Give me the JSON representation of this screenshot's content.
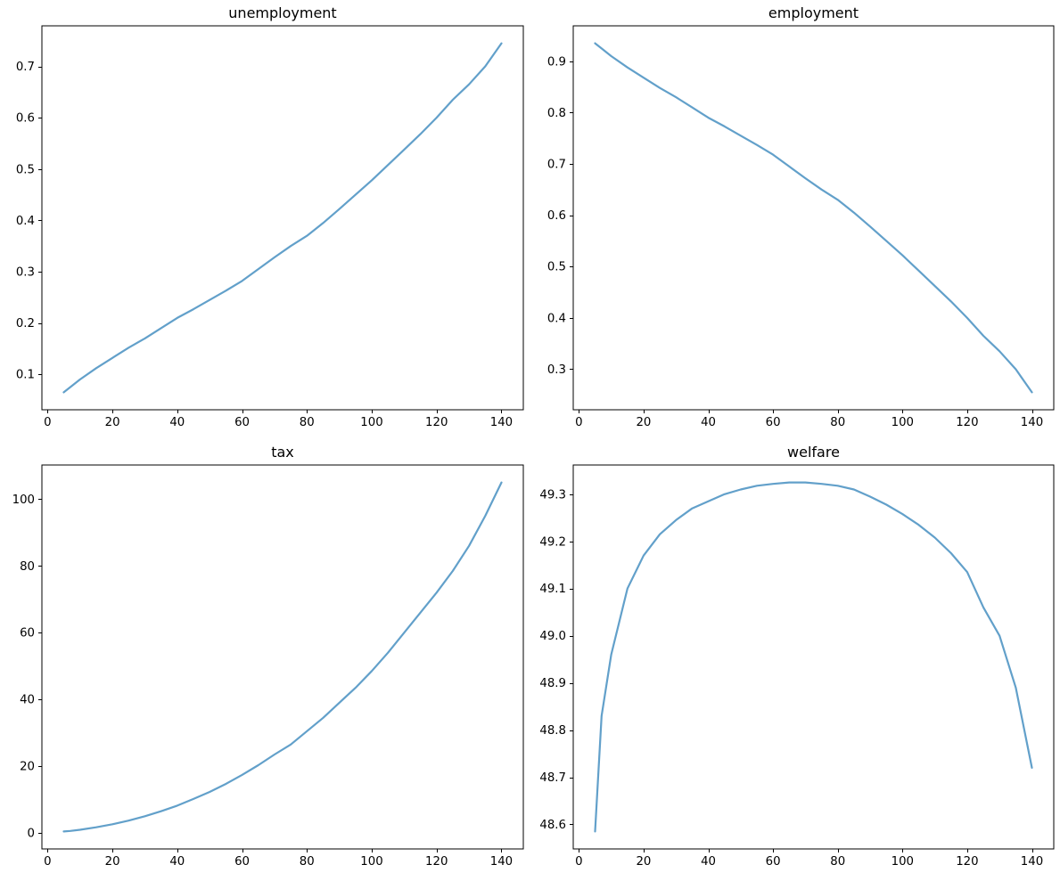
{
  "figure": {
    "background": "#ffffff",
    "line_color": "#62a0ca",
    "spine_color": "#000000",
    "text_color": "#000000",
    "line_width": 2.2
  },
  "chart_data": [
    {
      "type": "line",
      "title": "unemployment",
      "x": [
        5,
        7,
        10,
        15,
        20,
        25,
        30,
        35,
        40,
        45,
        50,
        55,
        60,
        65,
        70,
        75,
        80,
        85,
        90,
        95,
        100,
        105,
        110,
        115,
        120,
        125,
        130,
        135,
        140
      ],
      "values": [
        0.065,
        0.075,
        0.09,
        0.112,
        0.132,
        0.152,
        0.17,
        0.19,
        0.21,
        0.227,
        0.245,
        0.263,
        0.282,
        0.305,
        0.328,
        0.35,
        0.37,
        0.395,
        0.422,
        0.45,
        0.478,
        0.508,
        0.538,
        0.568,
        0.6,
        0.635,
        0.665,
        0.7,
        0.745
      ],
      "xlim": [
        -1.75,
        146.75
      ],
      "ylim": [
        0.031,
        0.779
      ],
      "xticks": [
        0,
        20,
        40,
        60,
        80,
        100,
        120,
        140
      ],
      "yticks": [
        0.1,
        0.2,
        0.3,
        0.4,
        0.5,
        0.6,
        0.7
      ],
      "xtick_decimals": 0,
      "ytick_decimals": 1,
      "grid": false,
      "legend": "none"
    },
    {
      "type": "line",
      "title": "employment",
      "x": [
        5,
        7,
        10,
        15,
        20,
        25,
        30,
        35,
        40,
        45,
        50,
        55,
        60,
        65,
        70,
        75,
        80,
        85,
        90,
        95,
        100,
        105,
        110,
        115,
        120,
        125,
        130,
        135,
        140
      ],
      "values": [
        0.935,
        0.925,
        0.91,
        0.888,
        0.868,
        0.848,
        0.83,
        0.81,
        0.79,
        0.773,
        0.755,
        0.737,
        0.718,
        0.695,
        0.672,
        0.65,
        0.63,
        0.605,
        0.578,
        0.55,
        0.522,
        0.492,
        0.462,
        0.432,
        0.4,
        0.365,
        0.335,
        0.3,
        0.255
      ],
      "xlim": [
        -1.75,
        146.75
      ],
      "ylim": [
        0.221,
        0.969
      ],
      "xticks": [
        0,
        20,
        40,
        60,
        80,
        100,
        120,
        140
      ],
      "yticks": [
        0.3,
        0.4,
        0.5,
        0.6,
        0.7,
        0.8,
        0.9
      ],
      "xtick_decimals": 0,
      "ytick_decimals": 1,
      "grid": false,
      "legend": "none"
    },
    {
      "type": "line",
      "title": "tax",
      "x": [
        5,
        7,
        10,
        15,
        20,
        25,
        30,
        35,
        40,
        45,
        50,
        55,
        60,
        65,
        70,
        75,
        80,
        85,
        90,
        95,
        100,
        105,
        110,
        115,
        120,
        125,
        130,
        135,
        140
      ],
      "values": [
        0.45,
        0.6,
        0.95,
        1.7,
        2.6,
        3.7,
        5.0,
        6.5,
        8.2,
        10.2,
        12.3,
        14.7,
        17.4,
        20.3,
        23.5,
        26.5,
        30.5,
        34.5,
        39.0,
        43.5,
        48.5,
        54.0,
        60.0,
        66.0,
        72.0,
        78.5,
        86.0,
        95.0,
        105.0
      ],
      "xlim": [
        -1.75,
        146.75
      ],
      "ylim": [
        -4.78,
        110.23
      ],
      "xticks": [
        0,
        20,
        40,
        60,
        80,
        100,
        120,
        140
      ],
      "yticks": [
        0,
        20,
        40,
        60,
        80,
        100
      ],
      "xtick_decimals": 0,
      "ytick_decimals": 0,
      "grid": false,
      "legend": "none"
    },
    {
      "type": "line",
      "title": "welfare",
      "x": [
        5,
        7,
        10,
        15,
        20,
        25,
        30,
        35,
        40,
        45,
        50,
        55,
        60,
        65,
        70,
        75,
        80,
        85,
        90,
        95,
        100,
        105,
        110,
        115,
        120,
        125,
        130,
        135,
        140
      ],
      "values": [
        48.585,
        48.83,
        48.96,
        49.1,
        49.17,
        49.215,
        49.245,
        49.27,
        49.285,
        49.3,
        49.31,
        49.318,
        49.322,
        49.325,
        49.325,
        49.322,
        49.318,
        49.31,
        49.295,
        49.278,
        49.258,
        49.235,
        49.208,
        49.175,
        49.135,
        49.06,
        49.0,
        48.89,
        48.72
      ],
      "xlim": [
        -1.75,
        146.75
      ],
      "ylim": [
        48.548,
        49.362
      ],
      "xticks": [
        0,
        20,
        40,
        60,
        80,
        100,
        120,
        140
      ],
      "yticks": [
        48.6,
        48.7,
        48.8,
        48.9,
        49.0,
        49.1,
        49.2,
        49.3
      ],
      "xtick_decimals": 0,
      "ytick_decimals": 1,
      "grid": false,
      "legend": "none"
    }
  ]
}
